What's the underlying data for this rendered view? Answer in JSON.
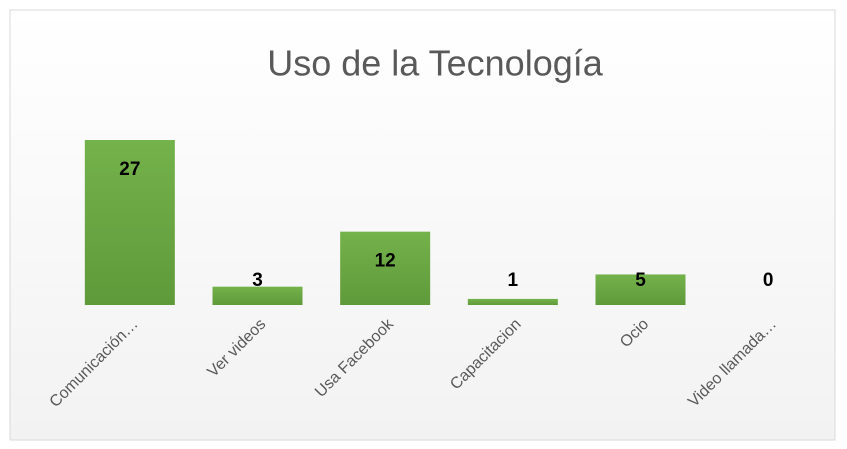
{
  "chart_data": {
    "type": "bar",
    "title": "Uso de la Tecnología",
    "categories": [
      "Comunicación…",
      "Ver videos",
      "Usa Facebook",
      "Capacitacion",
      "Ocio",
      "Video llamada…"
    ],
    "values": [
      27,
      3,
      12,
      1,
      5,
      0
    ],
    "color": "#70ad47"
  }
}
